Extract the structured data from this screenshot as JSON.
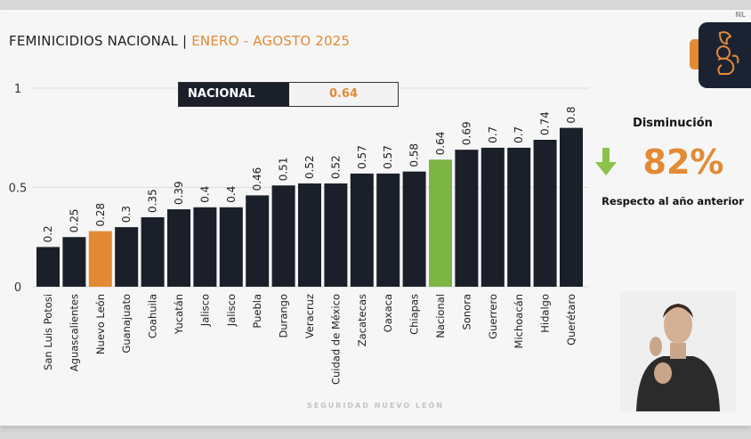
{
  "header": {
    "title_main": "FEMINICIDIOS NACIONAL | ",
    "title_period": "ENERO - AGOSTO 2025",
    "corner_mark": "NL"
  },
  "nacional_box": {
    "label": "NACIONAL",
    "value": "0.64"
  },
  "summary": {
    "heading": "Disminución",
    "value": "82%",
    "subtext": "Respecto al año anterior",
    "icon": "arrow-down-icon",
    "arrow_color": "#8cc24a"
  },
  "footer": "SEGURIDAD NUEVO LEÓN",
  "colors": {
    "bar_default": "#1b1f2a",
    "highlight": "#e38a35",
    "national": "#7db544",
    "accent": "#e38a35"
  },
  "chart_data": {
    "type": "bar",
    "title": "FEMINICIDIOS NACIONAL | ENERO - AGOSTO 2025",
    "categories": [
      "San Luis Potosi",
      "Aguascalientes",
      "Nuevo León",
      "Guanajuato",
      "Coahuila",
      "Yucatán",
      "Jalisco",
      "Jalisco",
      "Puebla",
      "Durango",
      "Veracruz",
      "Cuidad de México",
      "Zacatecas",
      "Oaxaca",
      "Chiapas",
      "Nacional",
      "Sonora",
      "Guerrero",
      "Michoacán",
      "Hidalgo",
      "Querétaro"
    ],
    "values": [
      0.2,
      0.25,
      0.28,
      0.3,
      0.35,
      0.39,
      0.4,
      0.4,
      0.46,
      0.51,
      0.52,
      0.52,
      0.57,
      0.57,
      0.58,
      0.64,
      0.69,
      0.7,
      0.7,
      0.74,
      0.8
    ],
    "value_labels": [
      "0.2",
      "0.25",
      "0.28",
      "0.3",
      "0.35",
      "0.39",
      "0.4",
      "0.4",
      "0.46",
      "0.51",
      "0.52",
      "0.52",
      "0.57",
      "0.57",
      "0.58",
      "0.64",
      "0.69",
      "0.7",
      "0.7",
      "0.74",
      "0.8"
    ],
    "highlight": {
      "Nuevo León": "#e38a35",
      "Nacional": "#7db544"
    },
    "yticks": [
      "0",
      "0.5",
      "1"
    ],
    "ylim": [
      0,
      1
    ],
    "grid": true,
    "xlabel": "",
    "ylabel": ""
  }
}
